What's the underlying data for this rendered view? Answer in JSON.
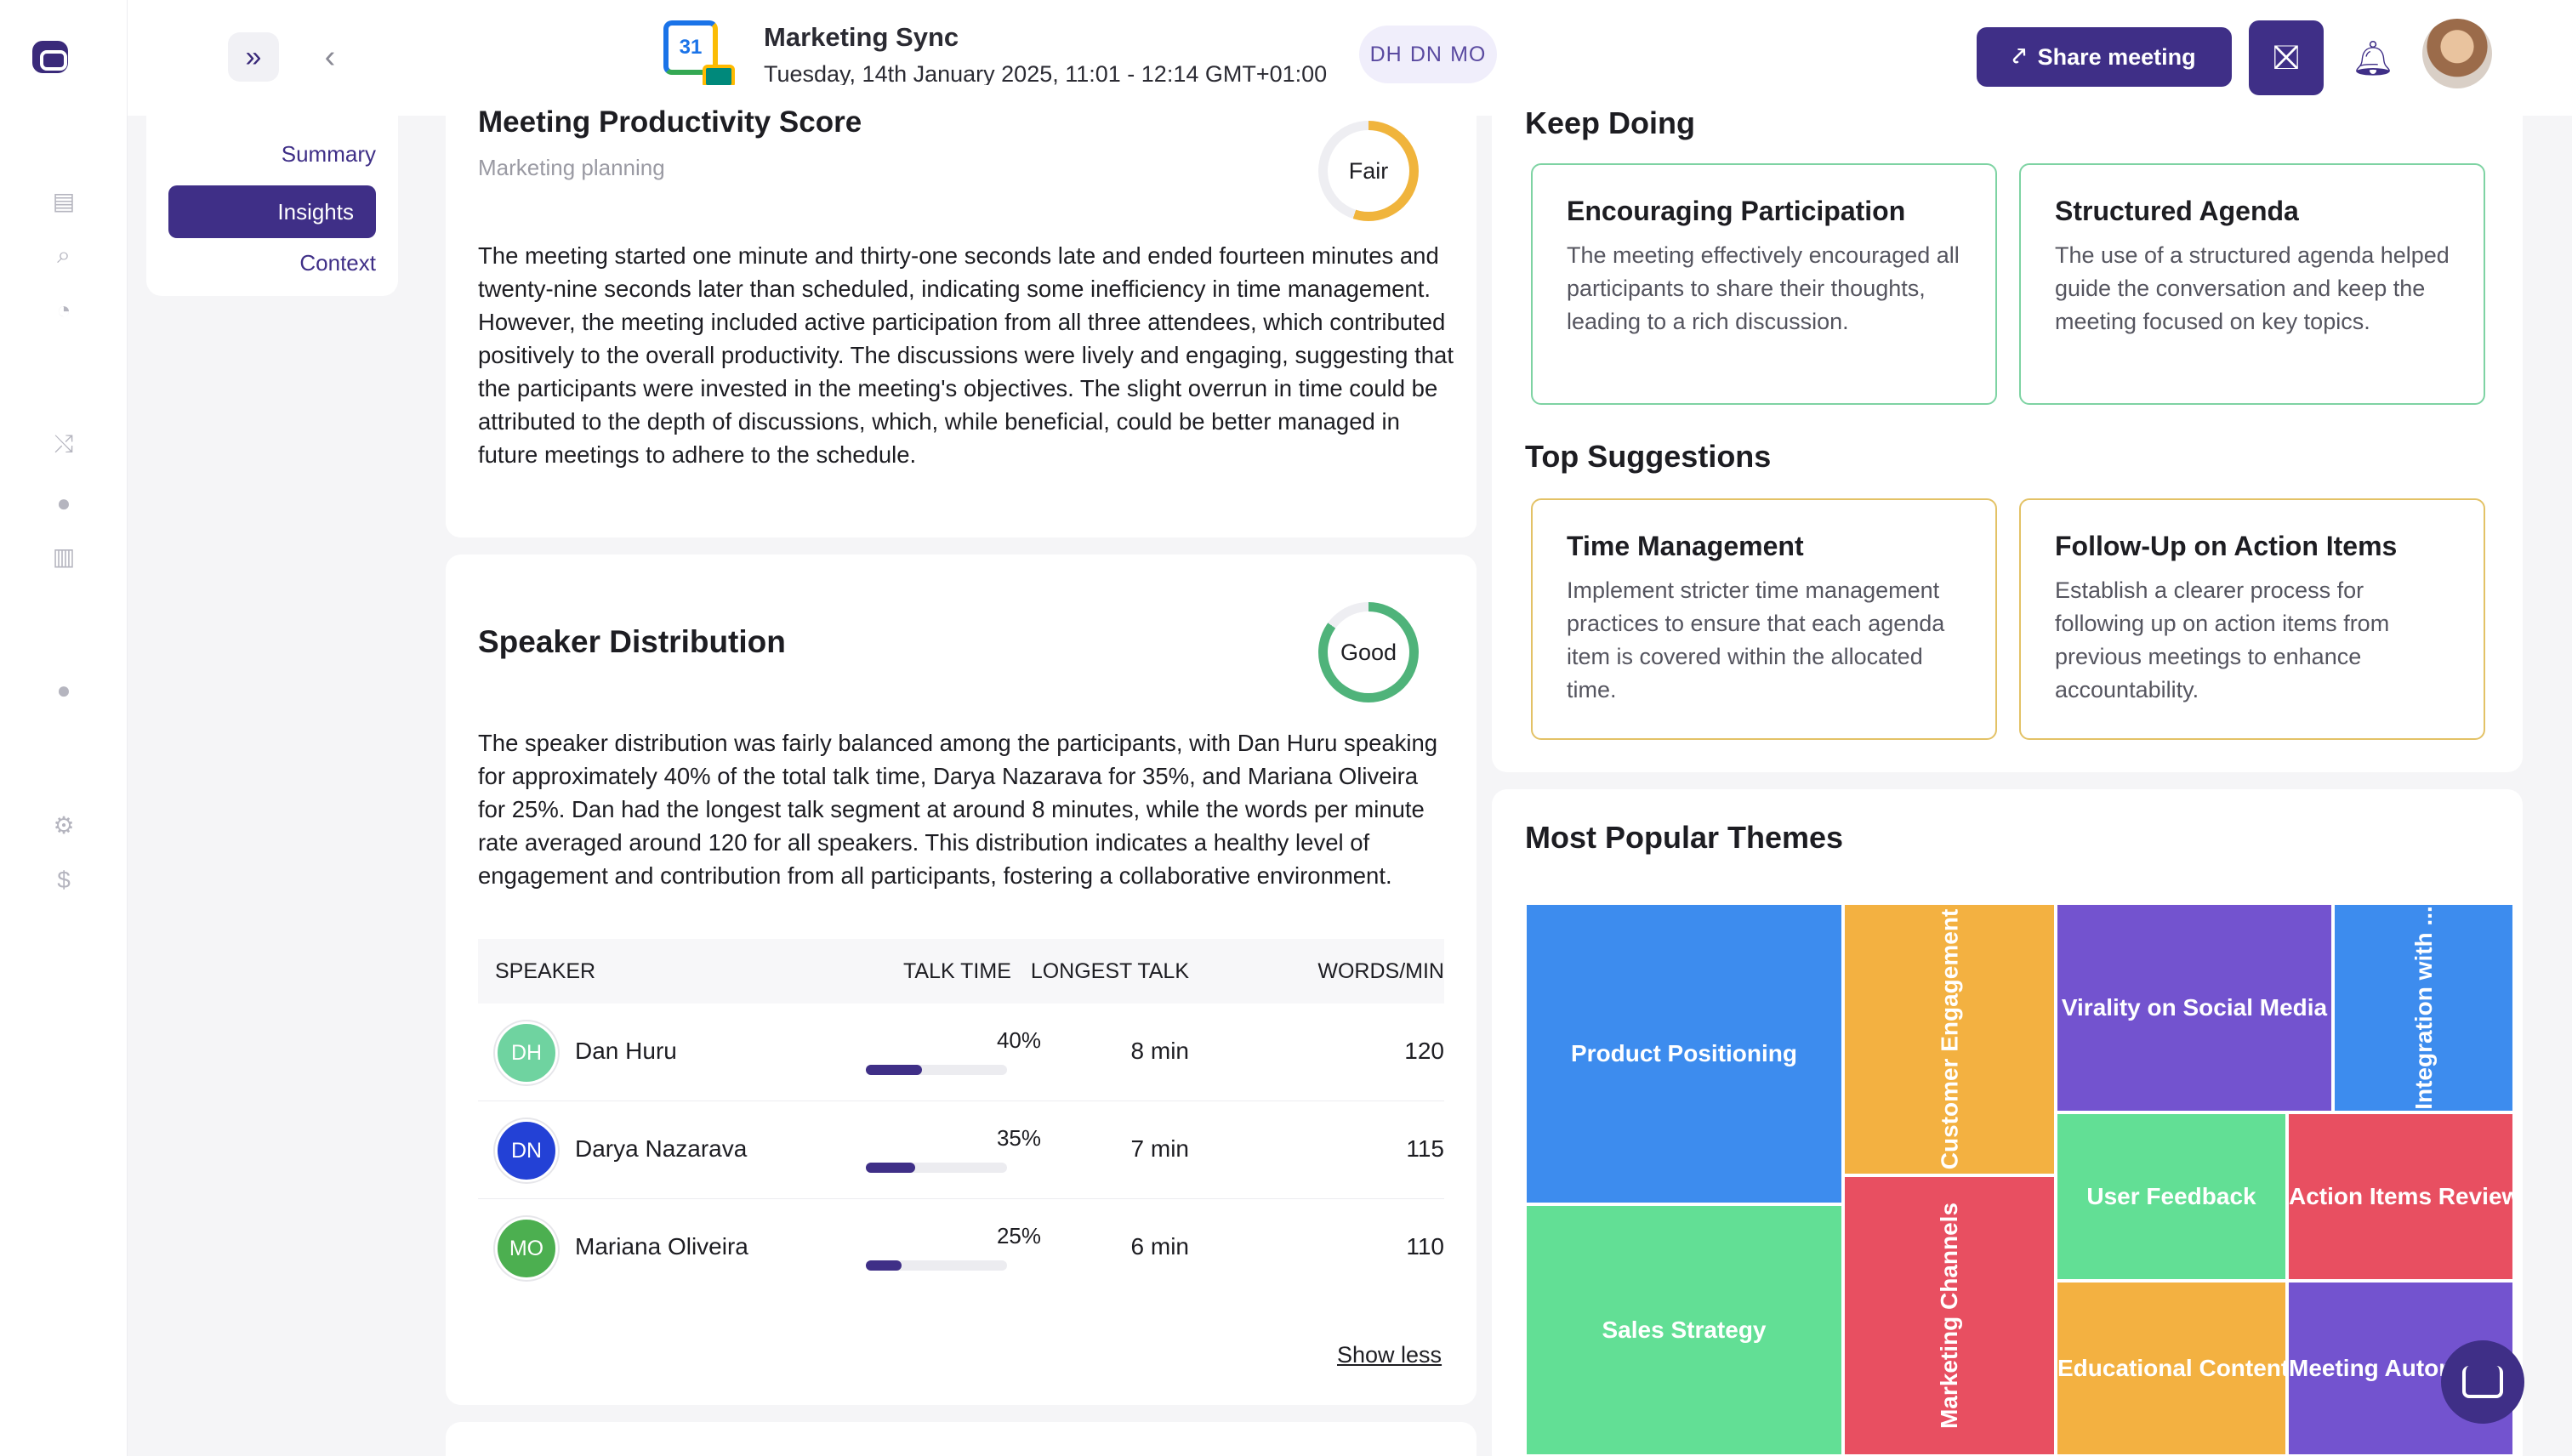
{
  "header": {
    "meeting_title": "Marketing Sync",
    "meeting_date": "Tuesday, 14th January 2025, 11:01 - 12:14 GMT+01:00",
    "calendar_day": "31",
    "participants": [
      "DH",
      "DN",
      "MO"
    ],
    "share_label": "Share meeting"
  },
  "subnav": {
    "items": [
      "Summary",
      "Insights",
      "Context"
    ],
    "active": "Insights"
  },
  "productivity": {
    "title": "Meeting Productivity Score",
    "subtitle": "Marketing planning",
    "rating": "Fair",
    "rating_fraction": 0.55,
    "text": "The meeting started one minute and thirty-one seconds late and ended fourteen minutes and twenty-nine seconds later than scheduled, indicating some inefficiency in time management. However, the meeting included active participation from all three attendees, which contributed positively to the overall productivity. The discussions were lively and engaging, suggesting that the participants were invested in the meeting's objectives. The slight overrun in time could be attributed to the depth of discussions, which, while beneficial, could be better managed in future meetings to adhere to the schedule."
  },
  "speaker": {
    "title": "Speaker Distribution",
    "rating": "Good",
    "rating_fraction": 0.85,
    "text": "The speaker distribution was fairly balanced among the participants, with Dan Huru speaking for approximately 40% of the total talk time, Darya Nazarava for 35%, and Mariana Oliveira for 25%. Dan had the longest talk segment at around 8 minutes, while the words per minute rate averaged around 120 for all speakers. This distribution indicates a healthy level of engagement and contribution from all participants, fostering a collaborative environment.",
    "columns": [
      "SPEAKER",
      "TALK TIME",
      "LONGEST TALK",
      "WORDS/MIN"
    ],
    "rows": [
      {
        "initials": "DH",
        "name": "Dan Huru",
        "talk": "40%",
        "talk_value": 40,
        "longest": "8 min",
        "wpm": "120",
        "color": "#6fd3a0"
      },
      {
        "initials": "DN",
        "name": "Darya Nazarava",
        "talk": "35%",
        "talk_value": 35,
        "longest": "7 min",
        "wpm": "115",
        "color": "#2341d6"
      },
      {
        "initials": "MO",
        "name": "Mariana Oliveira",
        "talk": "25%",
        "talk_value": 25,
        "longest": "6 min",
        "wpm": "110",
        "color": "#4caf50"
      }
    ],
    "show_less": "Show less"
  },
  "keep_doing": {
    "title": "Keep Doing",
    "items": [
      {
        "title": "Encouraging Participation",
        "text": "The meeting effectively encouraged all participants to share their thoughts, leading to a rich discussion."
      },
      {
        "title": "Structured Agenda",
        "text": "The use of a structured agenda helped guide the conversation and keep the meeting focused on key topics."
      }
    ]
  },
  "suggestions": {
    "title": "Top Suggestions",
    "items": [
      {
        "title": "Time Management",
        "text": "Implement stricter time management practices to ensure that each agenda item is covered within the allocated time."
      },
      {
        "title": "Follow-Up on Action Items",
        "text": "Establish a clearer process for following up on action items from previous meetings to enhance accountability."
      }
    ]
  },
  "themes": {
    "title": "Most Popular Themes",
    "labels": {
      "product_positioning": "Product Positioning",
      "customer_engagement": "Customer Engagement",
      "virality": "Virality on Social Media",
      "integration": "Integration with ...",
      "sales_strategy": "Sales Strategy",
      "marketing_channels": "Marketing Channels",
      "user_feedback": "User Feedback",
      "action_items": "Action Items Review",
      "educational": "Educational Content",
      "meeting_auto": "Meeting Autor"
    },
    "colors": {
      "blue": "#3d8cee",
      "orange": "#f3b141",
      "purple": "#7353cf",
      "green": "#62df95",
      "red": "#e84f61"
    }
  }
}
